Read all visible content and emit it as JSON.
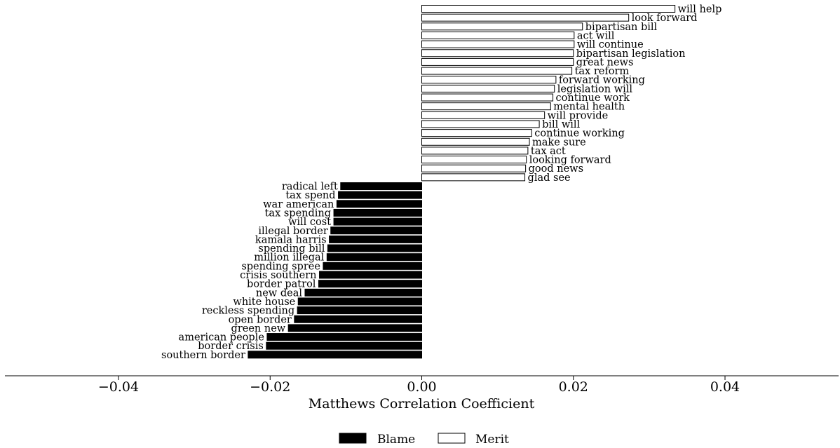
{
  "chart_data": {
    "type": "bar",
    "orientation": "horizontal",
    "xlabel": "Matthews Correlation Coefficient",
    "xlim": [
      -0.055,
      0.055
    ],
    "xticks": [
      -0.04,
      -0.02,
      0.0,
      0.02,
      0.04
    ],
    "xtick_labels": [
      "−0.04",
      "−0.02",
      "0.00",
      "0.02",
      "0.04"
    ],
    "grid": false,
    "legend_position": "bottom-center",
    "series": [
      {
        "name": "Merit",
        "color": "#ffffff",
        "edgecolor": "#000000",
        "categories": [
          "will help",
          "look forward",
          "bipartisan bill",
          "act will",
          "will continue",
          "bipartisan legislation",
          "great news",
          "tax reform",
          "forward working",
          "legislation will",
          "continue work",
          "mental health",
          "will provide",
          "bill will",
          "continue working",
          "make sure",
          "tax act",
          "looking forward",
          "good news",
          "glad see"
        ],
        "values": [
          0.0334,
          0.0273,
          0.0212,
          0.0201,
          0.0201,
          0.02,
          0.02,
          0.0198,
          0.0177,
          0.0175,
          0.0173,
          0.017,
          0.0162,
          0.0155,
          0.0145,
          0.0142,
          0.014,
          0.0138,
          0.0137,
          0.0136
        ]
      },
      {
        "name": "Blame",
        "color": "#000000",
        "edgecolor": "#000000",
        "categories": [
          "radical left",
          "tax spend",
          "war american",
          "tax spending",
          "will cost",
          "illegal border",
          "kamala harris",
          "spending bill",
          "million illegal",
          "spending spree",
          "crisis southern",
          "border patrol",
          "new deal",
          "white house",
          "reckless spending",
          "open border",
          "green new",
          "american people",
          "border crisis",
          "southern border"
        ],
        "values": [
          -0.0107,
          -0.011,
          -0.0112,
          -0.0116,
          -0.0116,
          -0.012,
          -0.0122,
          -0.0124,
          -0.0125,
          -0.013,
          -0.0135,
          -0.0136,
          -0.0154,
          -0.0163,
          -0.0164,
          -0.0168,
          -0.0176,
          -0.0204,
          -0.0205,
          -0.0229
        ]
      }
    ],
    "legend": [
      "Blame",
      "Merit"
    ]
  }
}
